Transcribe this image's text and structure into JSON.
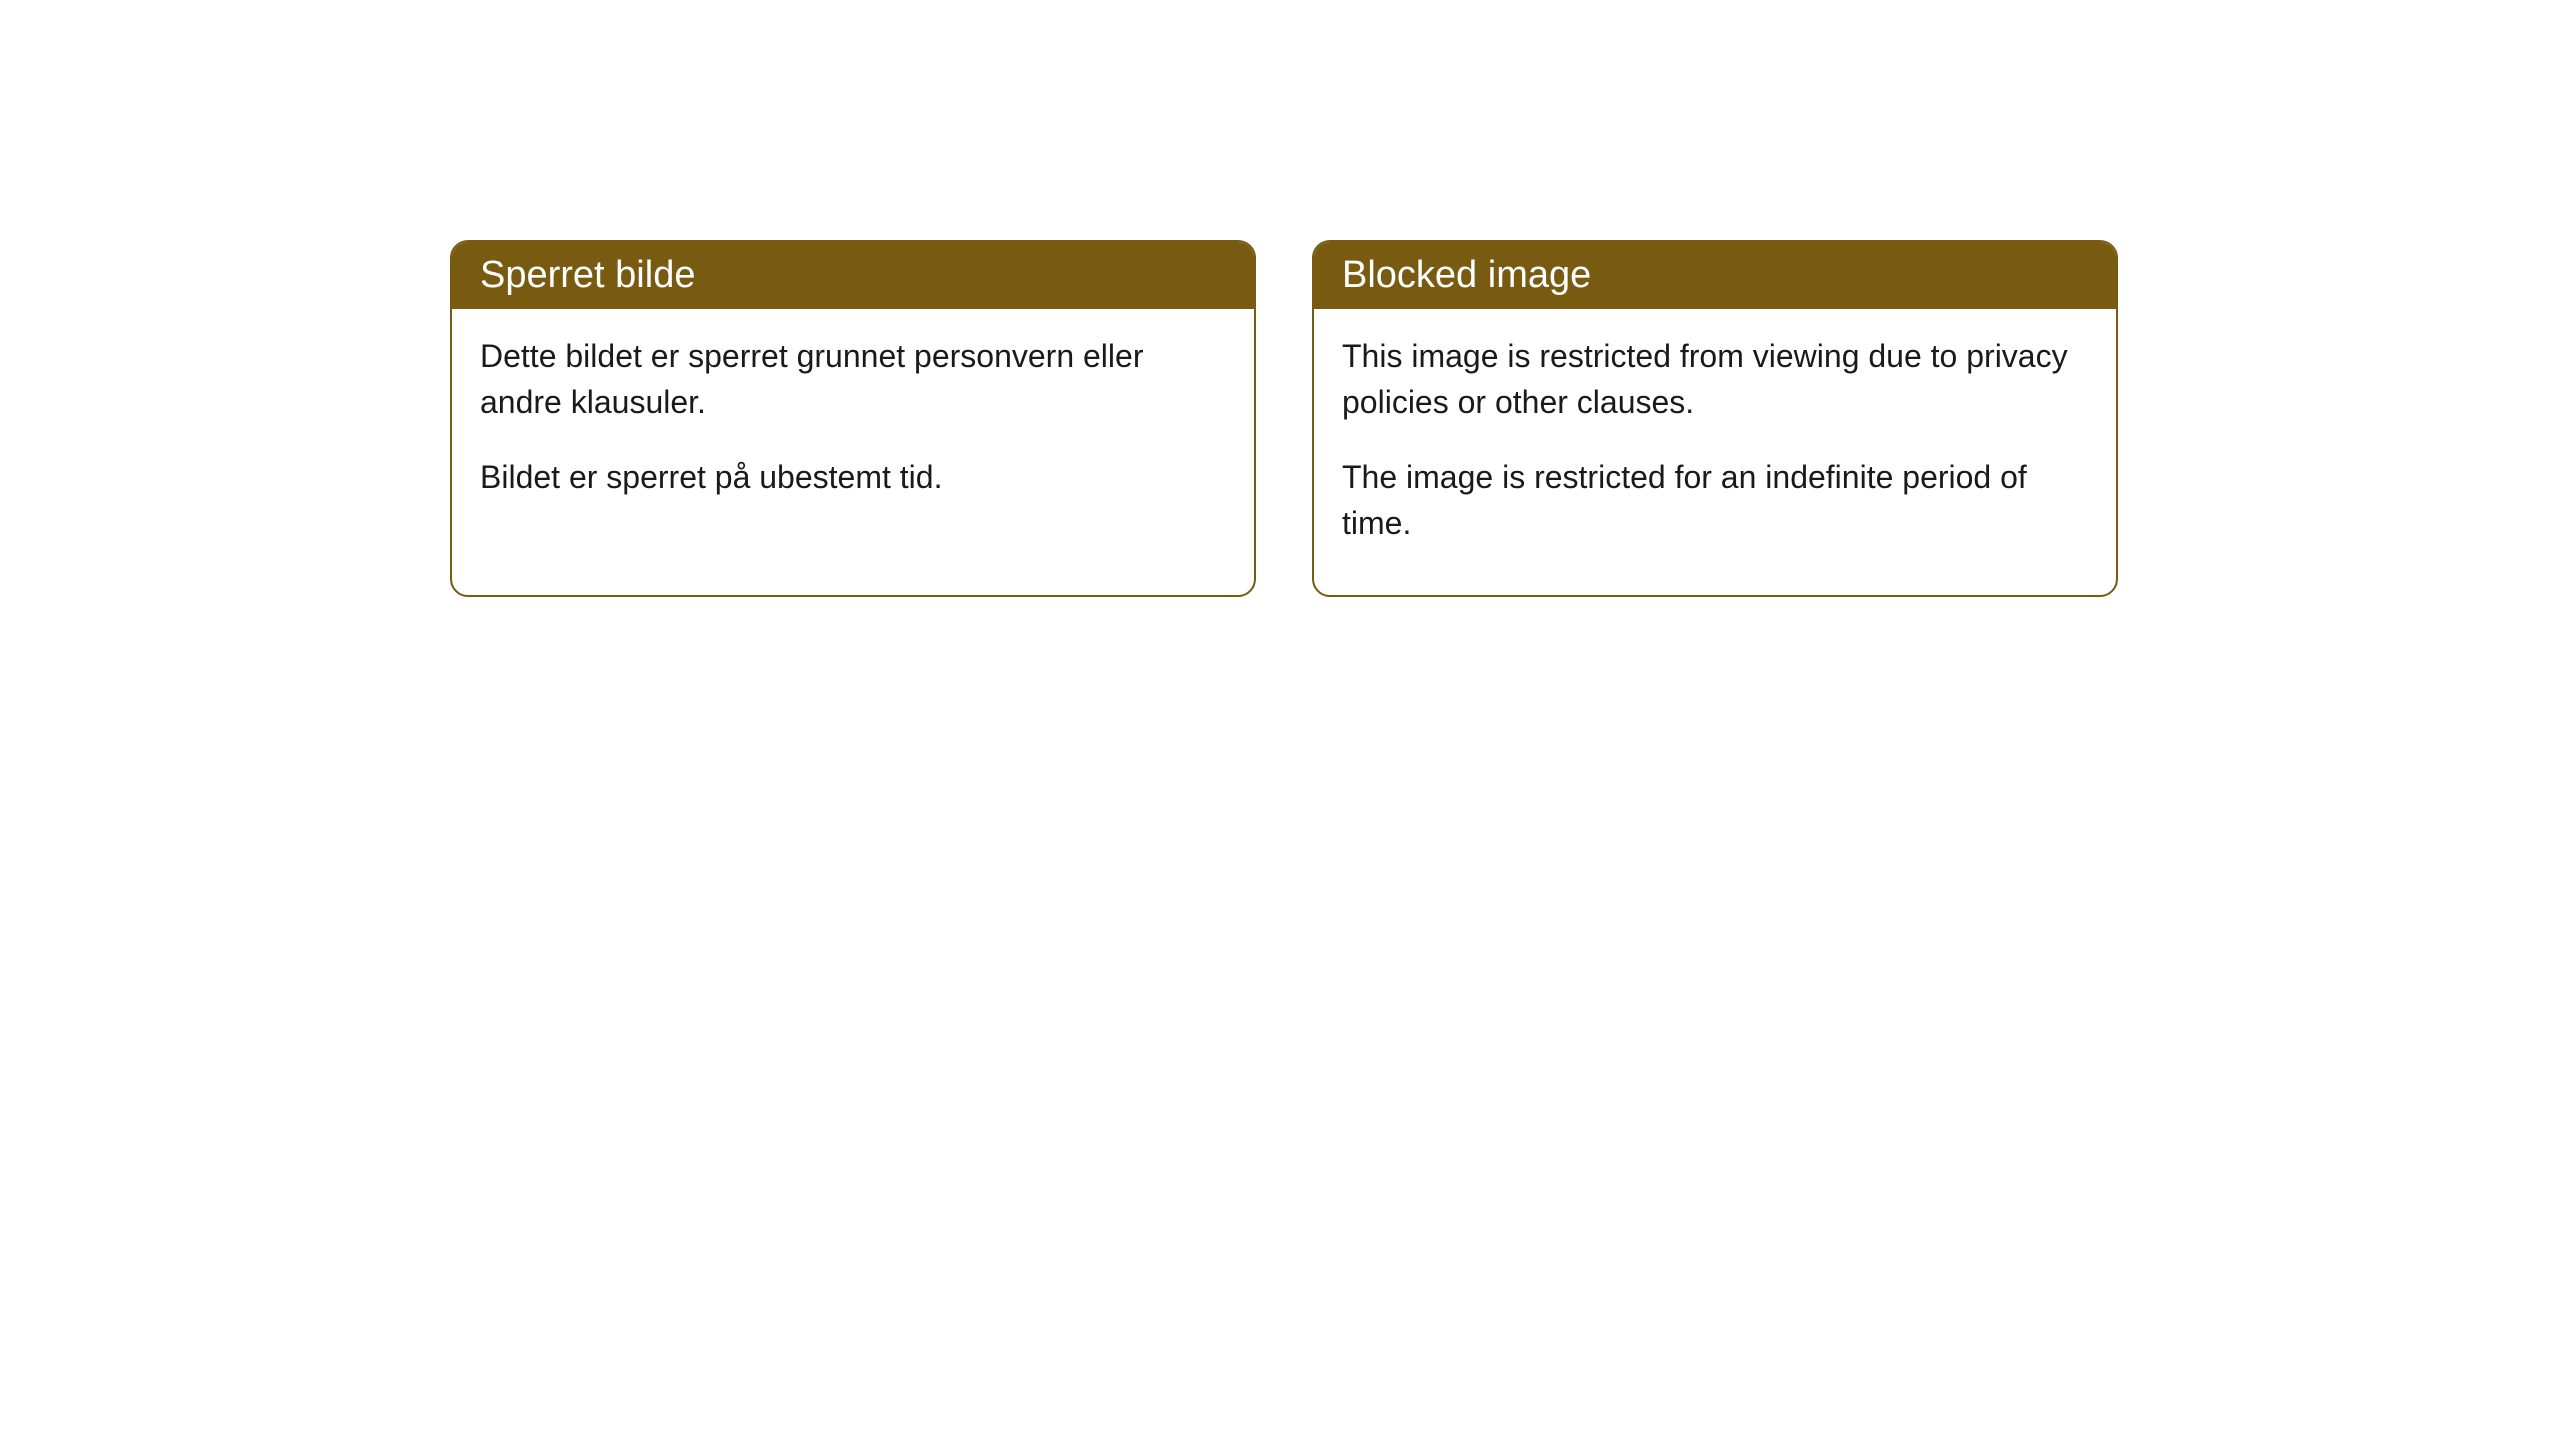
{
  "cards": [
    {
      "title": "Sperret bilde",
      "paragraph1": "Dette bildet er sperret grunnet personvern eller andre klausuler.",
      "paragraph2": "Bildet er sperret på ubestemt tid."
    },
    {
      "title": "Blocked image",
      "paragraph1": "This image is restricted from viewing due to privacy policies or other clauses.",
      "paragraph2": "The image is restricted for an indefinite period of time."
    }
  ],
  "styling": {
    "header_bg_color": "#785b11",
    "header_text_color": "#ffffff",
    "border_color": "#785b11",
    "body_bg_color": "#ffffff",
    "body_text_color": "#1a1a1a",
    "border_radius": 18,
    "header_fontsize": 38,
    "body_fontsize": 32
  }
}
